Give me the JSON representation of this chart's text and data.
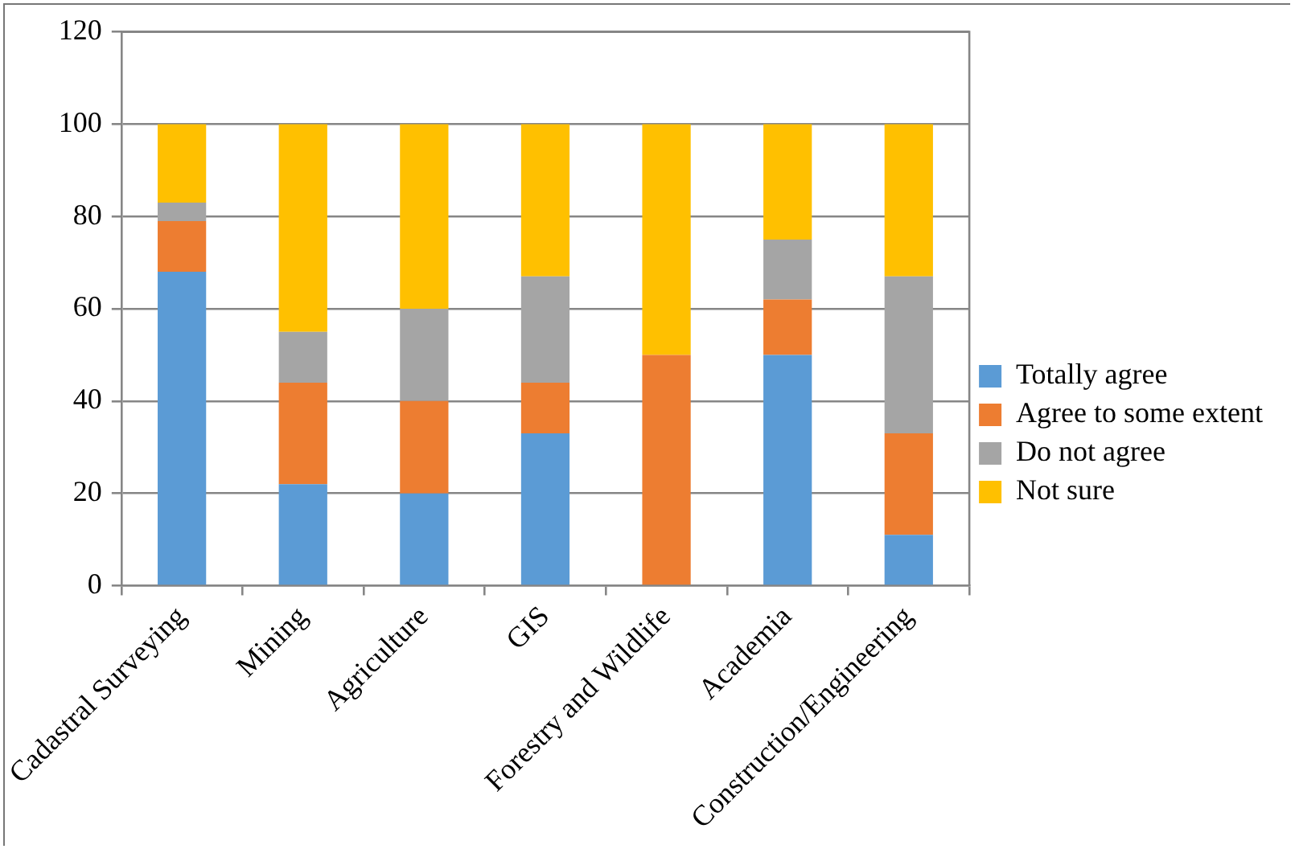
{
  "chart_data": {
    "type": "bar",
    "stacked": true,
    "categories": [
      "Cadastral Surveying",
      "Mining",
      "Agriculture",
      "GIS",
      "Forestry and Wildlife",
      "Academia",
      "Construction/Engineering"
    ],
    "series": [
      {
        "name": "Totally agree",
        "color": "#5b9bd5",
        "values": [
          68,
          22,
          20,
          33,
          0,
          50,
          11
        ]
      },
      {
        "name": "Agree to some extent",
        "color": "#ed7d31",
        "values": [
          11,
          22,
          20,
          11,
          50,
          12,
          22
        ]
      },
      {
        "name": "Do not agree",
        "color": "#a5a5a5",
        "values": [
          4,
          11,
          20,
          23,
          0,
          13,
          34
        ]
      },
      {
        "name": "Not sure",
        "color": "#ffc000",
        "values": [
          17,
          45,
          40,
          33,
          50,
          25,
          33
        ]
      }
    ],
    "ylim": [
      0,
      120
    ],
    "yticks": [
      0,
      20,
      40,
      60,
      80,
      100,
      120
    ],
    "grid": "y",
    "legend": "right"
  }
}
